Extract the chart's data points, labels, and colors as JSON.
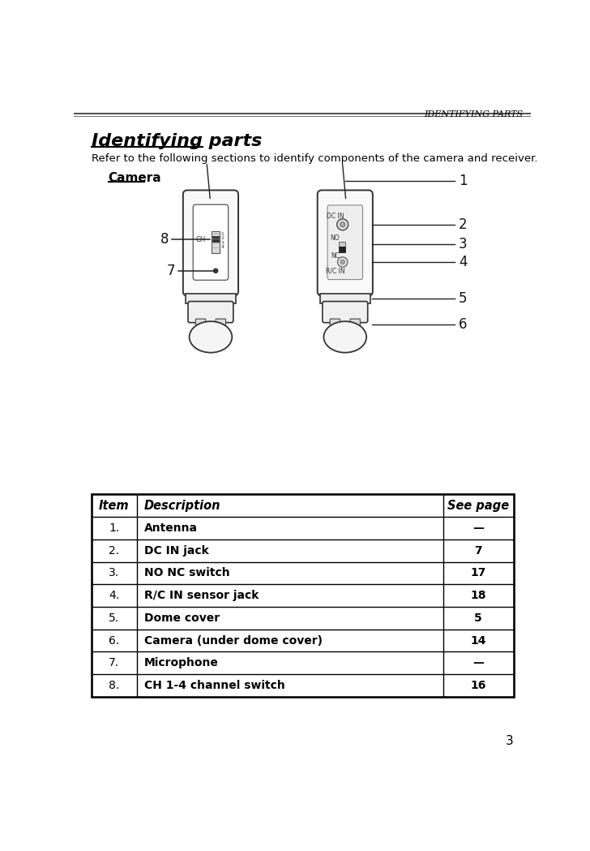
{
  "page_title": "IDENTIFYING PARTS",
  "section_title": "Identifying parts",
  "subtitle": "Refer to the following sections to identify components of the camera and receiver.",
  "camera_label": "Camera",
  "table_headers": [
    "Item",
    "Description",
    "See page"
  ],
  "table_rows": [
    [
      "1.",
      "Antenna",
      "—"
    ],
    [
      "2.",
      "DC IN jack",
      "7"
    ],
    [
      "3.",
      "NO NC switch",
      "17"
    ],
    [
      "4.",
      "R/C IN sensor jack",
      "18"
    ],
    [
      "5.",
      "Dome cover",
      "5"
    ],
    [
      "6.",
      "Camera (under dome cover)",
      "14"
    ],
    [
      "7.",
      "Microphone",
      "—"
    ],
    [
      "8.",
      "CH 1-4 channel switch",
      "16"
    ]
  ],
  "page_number": "3",
  "bg_color": "#ffffff",
  "text_color": "#000000",
  "line_color": "#000000",
  "table_border_color": "#000000"
}
